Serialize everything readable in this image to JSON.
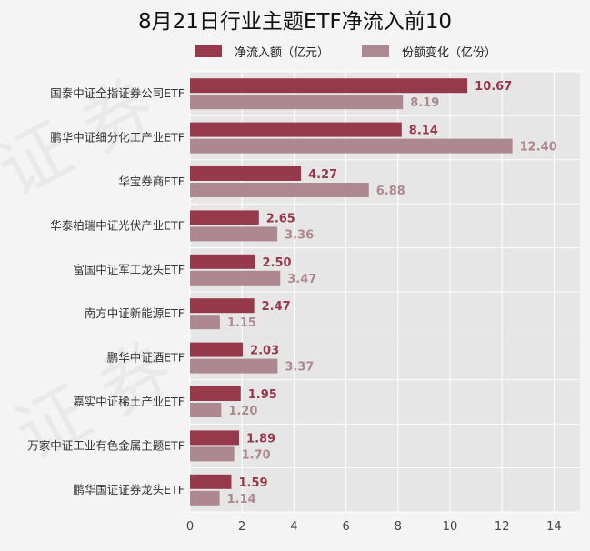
{
  "chart_data": {
    "type": "bar",
    "orientation": "horizontal",
    "title": "8月21日行业主题ETF净流入前10",
    "categories": [
      "国泰中证全指证券公司ETF",
      "鹏华中证细分化工产业ETF",
      "华宝券商ETF",
      "华泰柏瑞中证光伏产业ETF",
      "富国中证军工龙头ETF",
      "南方中证新能源ETF",
      "鹏华中证酒ETF",
      "嘉实中证稀土产业ETF",
      "万家中证工业有色金属主题ETF",
      "鹏华国证证券龙头ETF"
    ],
    "series": [
      {
        "name": "净流入额（亿元）",
        "color": "#963a4b",
        "values": [
          10.67,
          8.14,
          4.27,
          2.65,
          2.5,
          2.47,
          2.03,
          1.95,
          1.89,
          1.59
        ],
        "labels": [
          "10.67",
          "8.14",
          "4.27",
          "2.65",
          "2.50",
          "2.47",
          "2.03",
          "1.95",
          "1.89",
          "1.59"
        ]
      },
      {
        "name": "份额变化（亿份）",
        "color": "#ae8891",
        "values": [
          8.19,
          12.4,
          6.88,
          3.36,
          3.47,
          1.15,
          3.37,
          1.2,
          1.7,
          1.14
        ],
        "labels": [
          "8.19",
          "12.40",
          "6.88",
          "3.36",
          "3.47",
          "1.15",
          "3.37",
          "1.20",
          "1.70",
          "1.14"
        ]
      }
    ],
    "xlim": [
      0,
      15
    ],
    "xticks": [
      "0",
      "2",
      "4",
      "6",
      "8",
      "10",
      "12",
      "14"
    ],
    "xlabel": "",
    "ylabel": "",
    "grid": true,
    "legend_position": "top",
    "plot_background": "#e6e6e6",
    "grid_color": "#ffffff"
  },
  "watermark_text": "证券之星"
}
